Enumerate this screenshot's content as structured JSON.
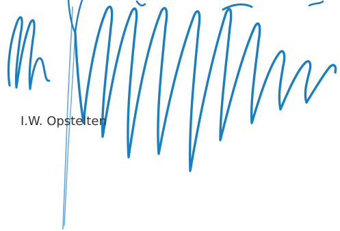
{
  "document": {
    "signatory_name": "I.W. Opstelten"
  },
  "signature": {
    "ink_color": "#1a7fc1",
    "ink_color_light": "#5fa8d8"
  },
  "colors": {
    "background": "#ffffff",
    "text": "#333333"
  }
}
